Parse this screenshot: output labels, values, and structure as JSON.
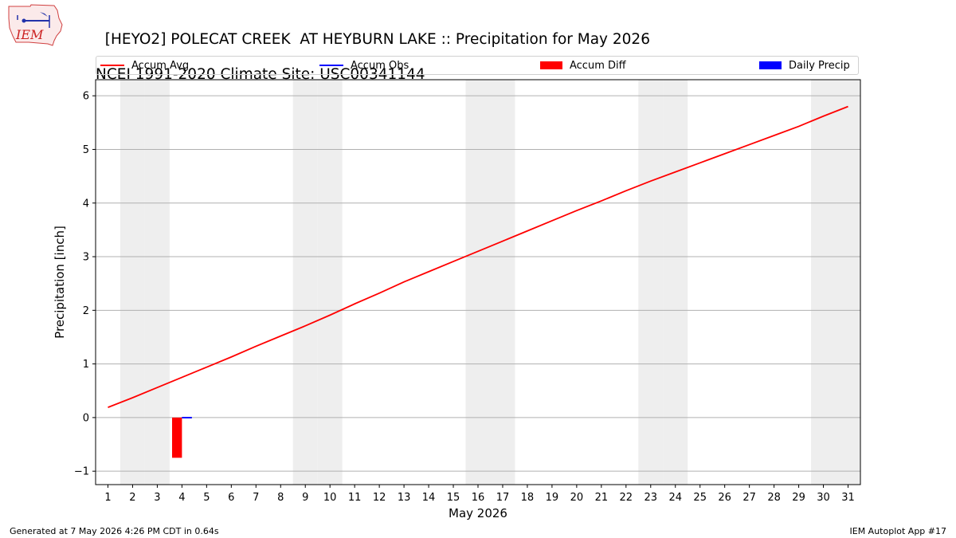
{
  "title": {
    "line1": "[HEYO2] POLECAT CREEK  AT HEYBURN LAKE :: Precipitation for May 2026",
    "line2": "NCEI 1991-2020 Climate Site: USC00341144"
  },
  "logo": {
    "icon": "iem-logo",
    "text": "IEM"
  },
  "footer": {
    "generated": "Generated at 7 May 2026 4:26 PM CDT in 0.64s",
    "app": "IEM Autoplot App #17"
  },
  "colors": {
    "avg": "#ff0000",
    "obs": "#0000ff",
    "diff": "#ff0000",
    "daily": "#0000ff",
    "weekend": "#eeeeee"
  },
  "chart_data": {
    "type": "line",
    "xlabel": "May 2026",
    "ylabel": "Precipitation [inch]",
    "xlim": [
      0.5,
      31.5
    ],
    "ylim": [
      -1.25,
      6.3
    ],
    "yticks": [
      -1,
      0,
      1,
      2,
      3,
      4,
      5,
      6
    ],
    "grid": "y",
    "legend": {
      "placement": "top",
      "entries": [
        "Accum Avg",
        "Accum Obs",
        "Accum Diff",
        "Daily Precip"
      ]
    },
    "x": [
      1,
      2,
      3,
      4,
      5,
      6,
      7,
      8,
      9,
      10,
      11,
      12,
      13,
      14,
      15,
      16,
      17,
      18,
      19,
      20,
      21,
      22,
      23,
      24,
      25,
      26,
      27,
      28,
      29,
      30,
      31
    ],
    "weekend_days": [
      2,
      3,
      9,
      10,
      16,
      17,
      23,
      24,
      30,
      31
    ],
    "series": [
      {
        "name": "Accum Avg",
        "kind": "line",
        "values": [
          0.19,
          0.37,
          0.56,
          0.75,
          0.94,
          1.13,
          1.33,
          1.52,
          1.71,
          1.91,
          2.12,
          2.32,
          2.53,
          2.72,
          2.91,
          3.1,
          3.29,
          3.48,
          3.67,
          3.86,
          4.04,
          4.23,
          4.41,
          4.58,
          4.75,
          4.92,
          5.09,
          5.26,
          5.43,
          5.62,
          5.8
        ]
      },
      {
        "name": "Accum Obs",
        "kind": "line",
        "x": [
          4,
          4.4
        ],
        "values": [
          0.0,
          0.0
        ]
      },
      {
        "name": "Accum Diff",
        "kind": "bar",
        "x": [
          4
        ],
        "values": [
          -0.75
        ]
      },
      {
        "name": "Daily Precip",
        "kind": "bar",
        "x": [
          4
        ],
        "values": [
          0.0
        ]
      }
    ]
  }
}
